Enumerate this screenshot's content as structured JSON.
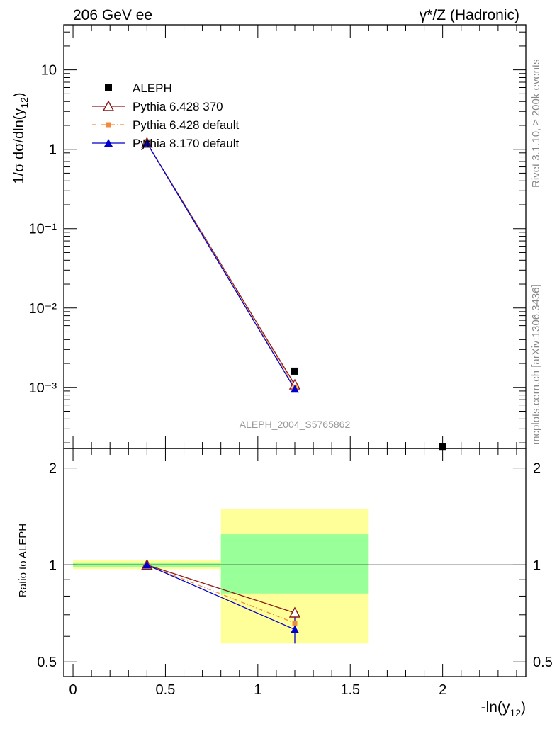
{
  "header": {
    "left": "206 GeV ee",
    "right": "γ*/Z (Hadronic)"
  },
  "side_labels": {
    "top": "Rivet 3.1.10, ≥ 200k events",
    "bottom": "mcplots.cern.ch [arXiv:1306.3436]"
  },
  "analysis_label": "ALEPH_2004_S5765862",
  "colors": {
    "aleph": "#000000",
    "py6_370": "#8b1a1a",
    "py6_default": "#f08a3c",
    "py8_default": "#0000cc",
    "band_inner": "#99ff99",
    "band_outer": "#ffff99"
  },
  "chart_data": [
    {
      "panel": "main",
      "type": "line",
      "ylabel": "1/σ dσ/dln(y12)",
      "xlabel": "",
      "y_scale": "log",
      "xlim": [
        -0.05,
        2.45
      ],
      "ylim": [
        0.00017,
        37
      ],
      "y_ticks": [
        "10⁻³",
        "10⁻²",
        "10⁻¹",
        "1",
        "10"
      ],
      "legend_position": "top-left",
      "series": [
        {
          "name": "ALEPH",
          "style": "data",
          "x": [
            0.4,
            1.2,
            2.0
          ],
          "y": [
            1.2,
            0.0016,
            0.00018
          ]
        },
        {
          "name": "Pythia 6.428 370",
          "style": "open-triangle",
          "x": [
            0.4,
            1.2
          ],
          "y": [
            1.2,
            0.00108
          ]
        },
        {
          "name": "Pythia 6.428 default",
          "style": "square-dashdot",
          "x": [
            0.4,
            1.2
          ],
          "y": [
            1.2,
            0.00101
          ]
        },
        {
          "name": "Pythia 8.170 default",
          "style": "filled-triangle",
          "x": [
            0.4,
            1.2
          ],
          "y": [
            1.2,
            0.00095
          ]
        }
      ]
    },
    {
      "panel": "ratio",
      "type": "line",
      "ylabel": "Ratio to ALEPH",
      "xlabel": "-ln(y12)",
      "y_scale": "log",
      "xlim": [
        -0.05,
        2.45
      ],
      "ylim": [
        0.45,
        2.3
      ],
      "x_ticks": [
        "0",
        "0.5",
        "1",
        "1.5",
        "2"
      ],
      "y_ticks": [
        "0.5",
        "1",
        "2"
      ],
      "reference_line": 1,
      "bands": [
        {
          "x": [
            0,
            0.8
          ],
          "inner": [
            0.985,
            1.015
          ],
          "outer": [
            0.97,
            1.035
          ]
        },
        {
          "x": [
            0.8,
            1.6
          ],
          "inner": [
            0.815,
            1.245
          ],
          "outer": [
            0.57,
            1.49
          ]
        }
      ],
      "series": [
        {
          "name": "Pythia 6.428 370",
          "x": [
            0.4,
            1.2
          ],
          "y": [
            1.0,
            0.71
          ]
        },
        {
          "name": "Pythia 6.428 default",
          "x": [
            0.4,
            1.2
          ],
          "y": [
            1.0,
            0.66
          ]
        },
        {
          "name": "Pythia 8.170 default",
          "x": [
            0.4,
            1.2
          ],
          "y": [
            1.0,
            0.63
          ],
          "err": [
            0,
            0.06
          ]
        }
      ]
    }
  ]
}
